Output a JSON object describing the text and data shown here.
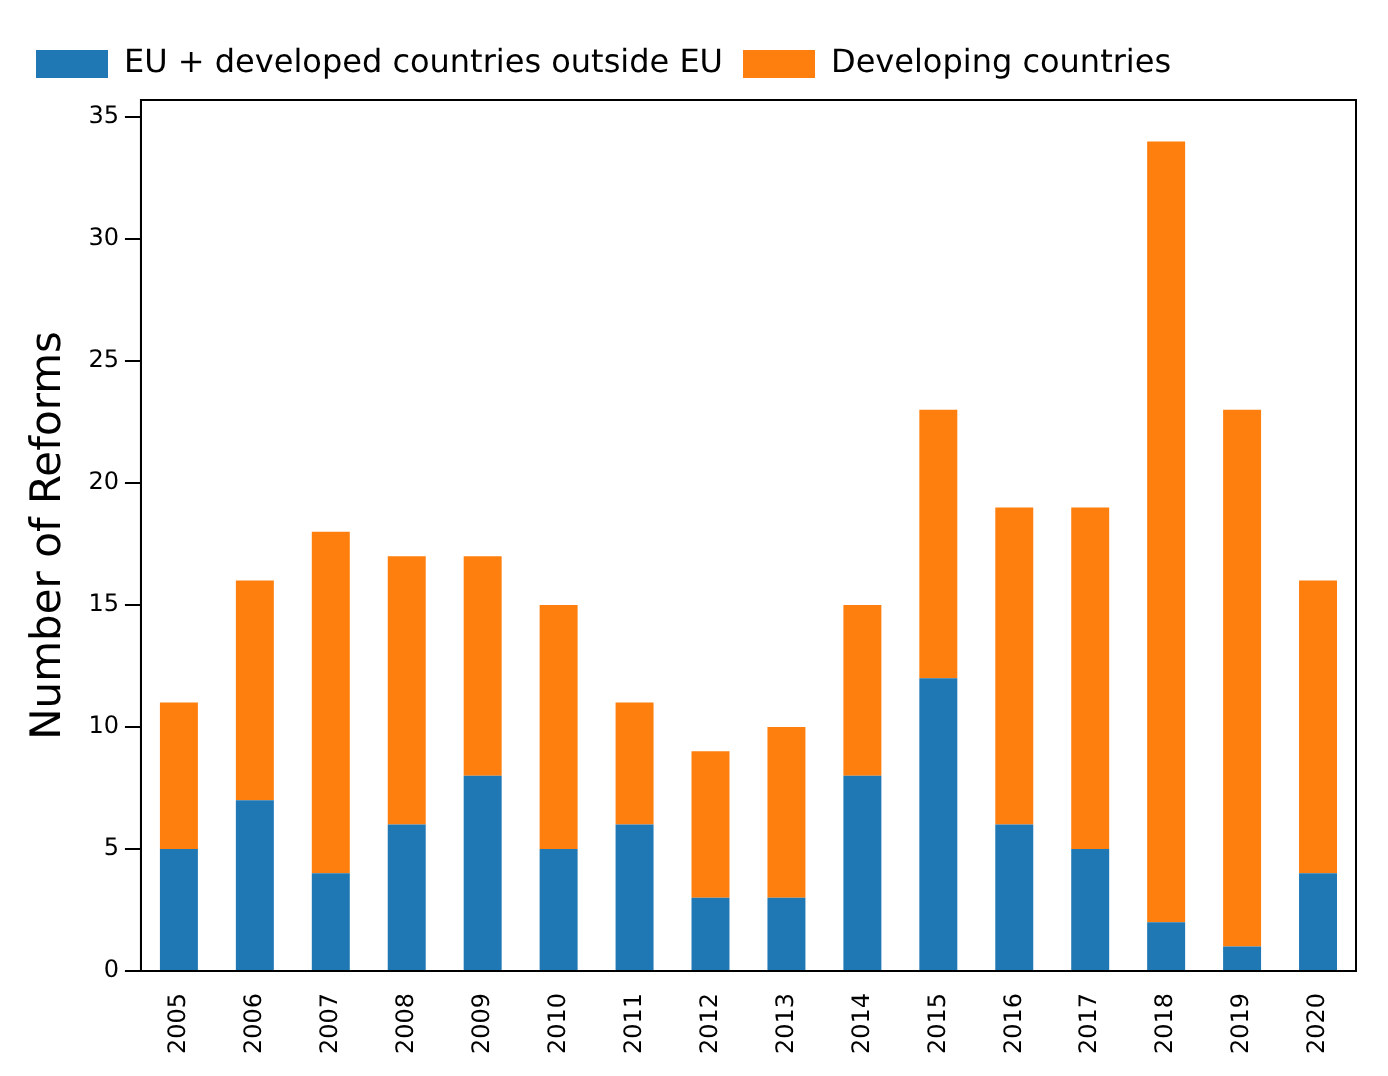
{
  "chart_data": {
    "type": "bar",
    "stacked": true,
    "ylabel": "Number of Reforms",
    "categories": [
      "2005",
      "2006",
      "2007",
      "2008",
      "2009",
      "2010",
      "2011",
      "2012",
      "2013",
      "2014",
      "2015",
      "2016",
      "2017",
      "2018",
      "2019",
      "2020"
    ],
    "series": [
      {
        "name": "EU + developed countries outside EU",
        "color": "#1f77b4",
        "values": [
          5,
          7,
          4,
          6,
          8,
          5,
          6,
          3,
          3,
          8,
          12,
          6,
          5,
          2,
          1,
          4
        ]
      },
      {
        "name": "Developing countries",
        "color": "#ff7f0e",
        "values": [
          6,
          9,
          14,
          11,
          9,
          10,
          5,
          6,
          7,
          7,
          11,
          13,
          14,
          32,
          22,
          12
        ]
      }
    ],
    "ylim": [
      0,
      35.7
    ],
    "yticks": [
      0,
      5,
      10,
      15,
      20,
      25,
      30,
      35
    ],
    "grid": false,
    "legend": "top left"
  }
}
